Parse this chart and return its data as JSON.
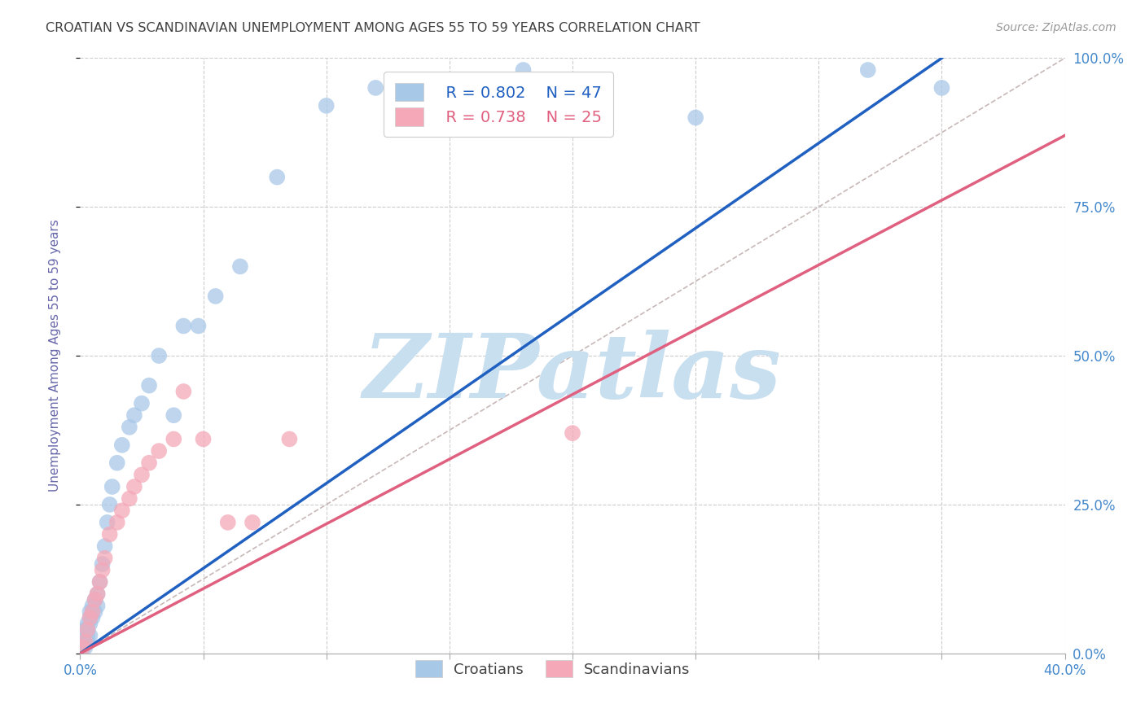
{
  "title": "CROATIAN VS SCANDINAVIAN UNEMPLOYMENT AMONG AGES 55 TO 59 YEARS CORRELATION CHART",
  "source": "Source: ZipAtlas.com",
  "ylabel": "Unemployment Among Ages 55 to 59 years",
  "xlim": [
    0.0,
    0.4
  ],
  "ylim": [
    0.0,
    1.0
  ],
  "xticks": [
    0.0,
    0.05,
    0.1,
    0.15,
    0.2,
    0.25,
    0.3,
    0.35,
    0.4
  ],
  "xticklabels": [
    "0.0%",
    "",
    "",
    "",
    "",
    "",
    "",
    "",
    "40.0%"
  ],
  "yticks": [
    0.0,
    0.25,
    0.5,
    0.75,
    1.0
  ],
  "yticklabels": [
    "0.0%",
    "25.0%",
    "50.0%",
    "75.0%",
    "100.0%"
  ],
  "croatian_color": "#a8c8e8",
  "scandinavian_color": "#f4a8b8",
  "croatian_line_color": "#2060c0",
  "scandinavian_line_color": "#e06080",
  "ref_line_color": "#c8b8b8",
  "watermark_color": "#c8dff0",
  "watermark_text": "ZIPatlas",
  "background_color": "#ffffff",
  "title_color": "#404040",
  "ylabel_color": "#6666aa",
  "tick_label_color": "#4488cc",
  "grid_color": "#cccccc",
  "croatian_x": [
    0.001,
    0.001,
    0.001,
    0.002,
    0.002,
    0.002,
    0.002,
    0.003,
    0.003,
    0.003,
    0.003,
    0.004,
    0.004,
    0.004,
    0.004,
    0.005,
    0.005,
    0.005,
    0.006,
    0.006,
    0.007,
    0.007,
    0.008,
    0.009,
    0.01,
    0.011,
    0.012,
    0.013,
    0.015,
    0.017,
    0.02,
    0.022,
    0.025,
    0.028,
    0.032,
    0.038,
    0.042,
    0.048,
    0.055,
    0.065,
    0.08,
    0.1,
    0.12,
    0.18,
    0.25,
    0.32,
    0.35
  ],
  "croatian_y": [
    0.01,
    0.02,
    0.03,
    0.01,
    0.02,
    0.03,
    0.04,
    0.02,
    0.03,
    0.04,
    0.05,
    0.03,
    0.05,
    0.06,
    0.07,
    0.06,
    0.07,
    0.08,
    0.07,
    0.09,
    0.08,
    0.1,
    0.12,
    0.15,
    0.18,
    0.22,
    0.25,
    0.28,
    0.32,
    0.35,
    0.38,
    0.4,
    0.42,
    0.45,
    0.5,
    0.4,
    0.55,
    0.55,
    0.6,
    0.65,
    0.8,
    0.92,
    0.95,
    0.98,
    0.9,
    0.98,
    0.95
  ],
  "scandinavian_x": [
    0.001,
    0.002,
    0.003,
    0.004,
    0.005,
    0.006,
    0.007,
    0.008,
    0.009,
    0.01,
    0.012,
    0.015,
    0.017,
    0.02,
    0.022,
    0.025,
    0.028,
    0.032,
    0.038,
    0.042,
    0.05,
    0.06,
    0.07,
    0.085,
    0.2
  ],
  "scandinavian_y": [
    0.01,
    0.02,
    0.04,
    0.06,
    0.07,
    0.09,
    0.1,
    0.12,
    0.14,
    0.16,
    0.2,
    0.22,
    0.24,
    0.26,
    0.28,
    0.3,
    0.32,
    0.34,
    0.36,
    0.44,
    0.36,
    0.22,
    0.22,
    0.36,
    0.37
  ],
  "legend_R_croatian": "R = 0.802",
  "legend_N_croatian": "N = 47",
  "legend_R_scandinavian": "R = 0.738",
  "legend_N_scandinavian": "N = 25",
  "croatian_line_x0": 0.0,
  "croatian_line_y0": 0.0,
  "croatian_line_x1": 0.35,
  "croatian_line_y1": 1.0,
  "scandinavian_line_x0": 0.0,
  "scandinavian_line_y0": 0.0,
  "scandinavian_line_x1": 0.4,
  "scandinavian_line_y1": 0.87
}
